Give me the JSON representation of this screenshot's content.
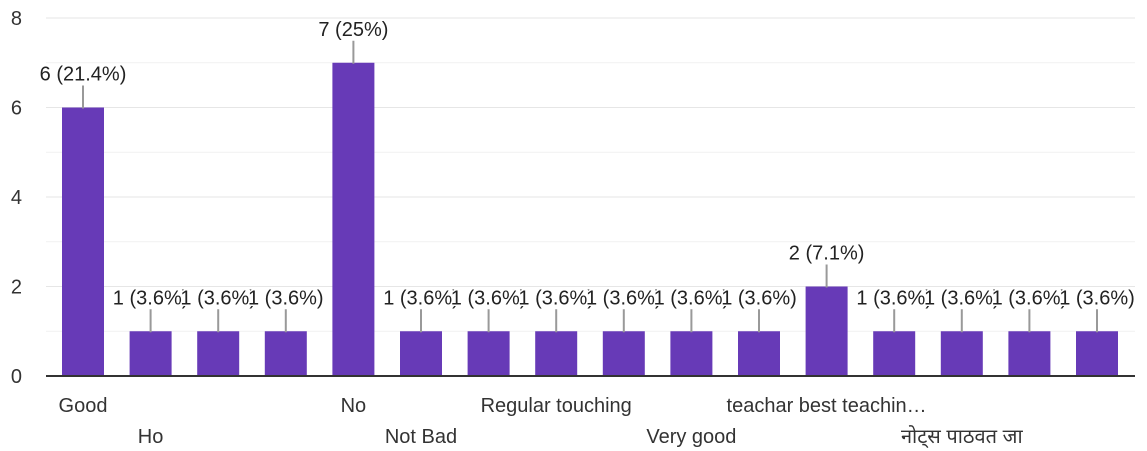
{
  "chart_data": {
    "type": "bar",
    "categories": [
      "Good",
      "Ho",
      "",
      "",
      "No",
      "Not Bad",
      "",
      "Regular touching",
      "",
      "Very good",
      "",
      "teachar best teachin…",
      "",
      "नोट्स पाठवत जा",
      "",
      ""
    ],
    "values": [
      6,
      1,
      1,
      1,
      7,
      1,
      1,
      1,
      1,
      1,
      1,
      2,
      1,
      1,
      1,
      1
    ],
    "data_labels": [
      "6 (21.4%)",
      "1 (3.6%)",
      "1 (3.6%)",
      "1 (3.6%)",
      "7 (25%)",
      "1 (3.6%)",
      "1 (3.6%)",
      "1 (3.6%)",
      "1 (3.6%)",
      "1 (3.6%)",
      "1 (3.6%)",
      "2 (7.1%)",
      "1 (3.6%)",
      "1 (3.6%)",
      "1 (3.6%)",
      "1 (3.6%)"
    ],
    "y_ticks": [
      "0",
      "2",
      "4",
      "6",
      "8"
    ],
    "ylim": [
      0,
      8
    ],
    "grid": true,
    "legend": "none",
    "bar_color": "#673ab7",
    "title": "",
    "xlabel": "",
    "ylabel": ""
  }
}
